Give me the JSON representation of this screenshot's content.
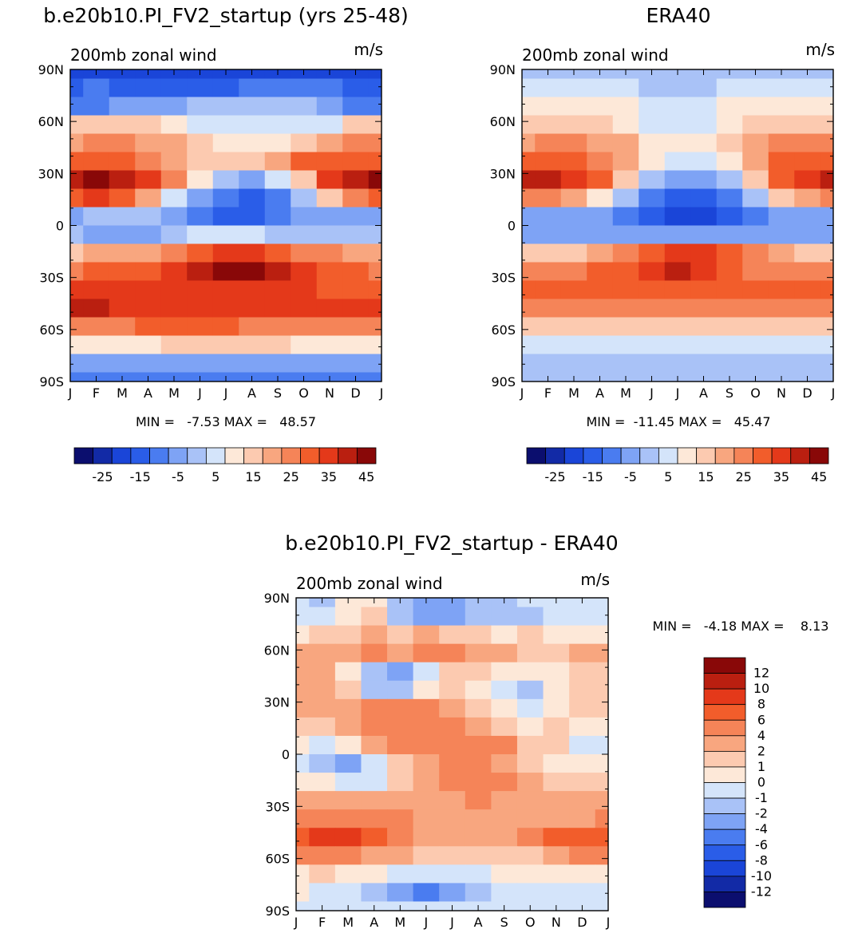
{
  "chart_data": [
    {
      "type": "heatmap",
      "title": "b.e20b10.PI_FV2_startup (yrs 25-48)",
      "subtitle": "200mb zonal wind",
      "units": "m/s",
      "x_ticks": [
        "J",
        "F",
        "M",
        "A",
        "M",
        "J",
        "J",
        "A",
        "S",
        "O",
        "N",
        "D",
        "J"
      ],
      "y_ticks": [
        "90N",
        "60N",
        "30N",
        "0",
        "30S",
        "60S",
        "90S"
      ],
      "stats": "MIN =   -7.53 MAX =   48.57",
      "colorbar": {
        "orientation": "horizontal",
        "levels": [
          -30,
          -25,
          -20,
          -15,
          -10,
          -5,
          0,
          5,
          10,
          15,
          20,
          25,
          30,
          35,
          40,
          45
        ],
        "labels": [
          "-25",
          "-15",
          "-5",
          "5",
          "15",
          "25",
          "35",
          "45"
        ],
        "colors": [
          "#0b0e6e",
          "#122aa6",
          "#1a45d8",
          "#2a5de8",
          "#4a7cf0",
          "#7ea3f5",
          "#a9c2f7",
          "#d4e4fa",
          "#fde8d8",
          "#fccab0",
          "#f8a67f",
          "#f58458",
          "#f25d2b",
          "#e4391a",
          "#ba1f10",
          "#890808"
        ]
      },
      "grid": [
        [
          2,
          2,
          2,
          2,
          2,
          2,
          2,
          2,
          2,
          2,
          2,
          2,
          2
        ],
        [
          3,
          4,
          3,
          3,
          3,
          3,
          3,
          4,
          4,
          4,
          4,
          3,
          3
        ],
        [
          4,
          4,
          5,
          5,
          5,
          6,
          6,
          6,
          6,
          6,
          5,
          4,
          4
        ],
        [
          9,
          9,
          9,
          9,
          8,
          7,
          7,
          7,
          7,
          7,
          7,
          9,
          9
        ],
        [
          10,
          11,
          11,
          10,
          10,
          9,
          8,
          8,
          8,
          9,
          10,
          11,
          11
        ],
        [
          12,
          12,
          12,
          11,
          10,
          9,
          9,
          9,
          10,
          12,
          12,
          12,
          12
        ],
        [
          14,
          15,
          14,
          13,
          11,
          8,
          6,
          5,
          7,
          9,
          13,
          14,
          15
        ],
        [
          12,
          13,
          12,
          10,
          7,
          5,
          4,
          3,
          4,
          6,
          9,
          11,
          12
        ],
        [
          5,
          6,
          6,
          6,
          5,
          4,
          3,
          3,
          4,
          5,
          5,
          5,
          5
        ],
        [
          6,
          5,
          5,
          5,
          6,
          7,
          7,
          7,
          6,
          6,
          6,
          6,
          6
        ],
        [
          9,
          10,
          10,
          10,
          11,
          12,
          13,
          13,
          12,
          11,
          11,
          10,
          10
        ],
        [
          11,
          12,
          12,
          12,
          13,
          14,
          15,
          15,
          14,
          13,
          12,
          12,
          11
        ],
        [
          13,
          13,
          13,
          13,
          13,
          13,
          13,
          13,
          13,
          13,
          12,
          12,
          12
        ],
        [
          14,
          14,
          13,
          13,
          13,
          13,
          13,
          13,
          13,
          13,
          13,
          13,
          13
        ],
        [
          11,
          11,
          11,
          12,
          12,
          12,
          12,
          11,
          11,
          11,
          11,
          11,
          11
        ],
        [
          8,
          8,
          8,
          8,
          9,
          9,
          9,
          9,
          9,
          8,
          8,
          8,
          8
        ],
        [
          5,
          5,
          5,
          5,
          5,
          5,
          5,
          5,
          5,
          5,
          5,
          5,
          5
        ],
        [
          4,
          4,
          4,
          4,
          4,
          4,
          4,
          4,
          4,
          4,
          4,
          4,
          4
        ]
      ]
    },
    {
      "type": "heatmap",
      "title": "ERA40",
      "subtitle": "200mb zonal wind",
      "units": "m/s",
      "x_ticks": [
        "J",
        "F",
        "M",
        "A",
        "M",
        "J",
        "J",
        "A",
        "S",
        "O",
        "N",
        "D",
        "J"
      ],
      "y_ticks": [
        "90N",
        "60N",
        "30N",
        "0",
        "30S",
        "60S",
        "90S"
      ],
      "stats": "MIN =  -11.45 MAX =   45.47",
      "colorbar": {
        "orientation": "horizontal",
        "levels": [
          -30,
          -25,
          -20,
          -15,
          -10,
          -5,
          0,
          5,
          10,
          15,
          20,
          25,
          30,
          35,
          40,
          45
        ],
        "labels": [
          "-25",
          "-15",
          "-5",
          "5",
          "15",
          "25",
          "35",
          "45"
        ],
        "colors": [
          "#0b0e6e",
          "#122aa6",
          "#1a45d8",
          "#2a5de8",
          "#4a7cf0",
          "#7ea3f5",
          "#a9c2f7",
          "#d4e4fa",
          "#fde8d8",
          "#fccab0",
          "#f8a67f",
          "#f58458",
          "#f25d2b",
          "#e4391a",
          "#ba1f10",
          "#890808"
        ]
      },
      "grid": [
        [
          6,
          6,
          6,
          6,
          6,
          6,
          6,
          6,
          6,
          6,
          6,
          6,
          6
        ],
        [
          7,
          7,
          7,
          7,
          7,
          6,
          6,
          6,
          7,
          7,
          7,
          7,
          7
        ],
        [
          8,
          8,
          8,
          8,
          8,
          7,
          7,
          7,
          8,
          8,
          8,
          8,
          8
        ],
        [
          9,
          9,
          9,
          9,
          8,
          7,
          7,
          7,
          8,
          9,
          9,
          9,
          9
        ],
        [
          10,
          11,
          11,
          10,
          10,
          8,
          8,
          8,
          9,
          10,
          11,
          11,
          11
        ],
        [
          12,
          12,
          12,
          11,
          10,
          8,
          7,
          7,
          8,
          10,
          12,
          12,
          12
        ],
        [
          14,
          14,
          13,
          12,
          9,
          6,
          5,
          5,
          6,
          9,
          12,
          13,
          14
        ],
        [
          11,
          11,
          10,
          8,
          6,
          4,
          3,
          3,
          4,
          6,
          9,
          10,
          11
        ],
        [
          5,
          5,
          5,
          5,
          4,
          3,
          2,
          2,
          3,
          4,
          5,
          5,
          5
        ],
        [
          5,
          5,
          5,
          5,
          5,
          5,
          5,
          5,
          5,
          5,
          5,
          5,
          5
        ],
        [
          9,
          9,
          9,
          10,
          11,
          12,
          13,
          13,
          12,
          11,
          10,
          9,
          9
        ],
        [
          11,
          11,
          11,
          12,
          12,
          13,
          14,
          13,
          12,
          11,
          11,
          11,
          11
        ],
        [
          12,
          12,
          12,
          12,
          12,
          12,
          12,
          12,
          12,
          12,
          12,
          12,
          12
        ],
        [
          11,
          11,
          11,
          11,
          11,
          11,
          11,
          11,
          11,
          11,
          11,
          11,
          11
        ],
        [
          9,
          9,
          9,
          9,
          9,
          9,
          9,
          9,
          9,
          9,
          9,
          9,
          9
        ],
        [
          7,
          7,
          7,
          7,
          7,
          7,
          7,
          7,
          7,
          7,
          7,
          7,
          7
        ],
        [
          6,
          6,
          6,
          6,
          6,
          6,
          6,
          6,
          6,
          6,
          6,
          6,
          6
        ],
        [
          6,
          6,
          6,
          6,
          6,
          6,
          6,
          6,
          6,
          6,
          6,
          6,
          6
        ]
      ]
    },
    {
      "type": "heatmap",
      "title": "b.e20b10.PI_FV2_startup - ERA40",
      "subtitle": "200mb zonal wind",
      "units": "m/s",
      "x_ticks": [
        "J",
        "F",
        "M",
        "A",
        "M",
        "J",
        "J",
        "A",
        "S",
        "O",
        "N",
        "D",
        "J"
      ],
      "y_ticks": [
        "90N",
        "60N",
        "30N",
        "0",
        "30S",
        "60S",
        "90S"
      ],
      "stats": "MIN =   -4.18 MAX =    8.13",
      "colorbar": {
        "orientation": "vertical",
        "levels": [
          -14,
          -12,
          -10,
          -8,
          -6,
          -4,
          -2,
          -1,
          0,
          1,
          2,
          4,
          6,
          8,
          10,
          12
        ],
        "labels": [
          "12",
          "10",
          "8",
          "6",
          "4",
          "2",
          "1",
          "0",
          "-1",
          "-2",
          "-4",
          "-6",
          "-8",
          "-10",
          "-12"
        ],
        "colors": [
          "#0b0e6e",
          "#122aa6",
          "#1a45d8",
          "#2a5de8",
          "#4a7cf0",
          "#7ea3f5",
          "#a9c2f7",
          "#d4e4fa",
          "#fde8d8",
          "#fccab0",
          "#f8a67f",
          "#f58458",
          "#f25d2b",
          "#e4391a",
          "#ba1f10",
          "#890808"
        ]
      },
      "grid": [
        [
          7,
          6,
          8,
          8,
          6,
          5,
          5,
          6,
          6,
          7,
          7,
          7,
          7
        ],
        [
          7,
          7,
          8,
          9,
          6,
          5,
          5,
          6,
          6,
          6,
          7,
          7,
          7
        ],
        [
          8,
          9,
          9,
          10,
          9,
          10,
          9,
          9,
          8,
          9,
          8,
          8,
          8
        ],
        [
          10,
          10,
          10,
          11,
          10,
          11,
          11,
          10,
          10,
          9,
          9,
          10,
          10
        ],
        [
          10,
          10,
          8,
          6,
          5,
          7,
          9,
          9,
          8,
          8,
          8,
          9,
          9
        ],
        [
          10,
          10,
          9,
          6,
          6,
          8,
          9,
          8,
          7,
          6,
          8,
          9,
          9
        ],
        [
          10,
          10,
          10,
          11,
          11,
          11,
          10,
          9,
          8,
          7,
          8,
          9,
          9
        ],
        [
          9,
          9,
          10,
          11,
          11,
          11,
          11,
          10,
          9,
          8,
          9,
          8,
          8
        ],
        [
          8,
          7,
          8,
          10,
          11,
          11,
          11,
          11,
          11,
          9,
          9,
          7,
          7
        ],
        [
          7,
          6,
          5,
          7,
          9,
          10,
          11,
          11,
          10,
          9,
          8,
          8,
          8
        ],
        [
          8,
          8,
          7,
          7,
          9,
          10,
          11,
          11,
          11,
          10,
          9,
          9,
          9
        ],
        [
          10,
          10,
          10,
          10,
          10,
          10,
          10,
          11,
          10,
          10,
          10,
          10,
          10
        ],
        [
          11,
          11,
          11,
          11,
          11,
          10,
          10,
          10,
          10,
          10,
          10,
          10,
          11
        ],
        [
          12,
          13,
          13,
          12,
          11,
          10,
          10,
          10,
          10,
          11,
          12,
          12,
          12
        ],
        [
          11,
          11,
          11,
          10,
          10,
          9,
          9,
          9,
          9,
          9,
          10,
          11,
          11
        ],
        [
          8,
          9,
          8,
          8,
          7,
          7,
          7,
          7,
          8,
          8,
          8,
          8,
          8
        ],
        [
          8,
          7,
          7,
          6,
          5,
          4,
          5,
          6,
          7,
          7,
          7,
          7,
          7
        ],
        [
          7,
          7,
          7,
          7,
          7,
          7,
          7,
          7,
          7,
          7,
          7,
          7,
          7
        ]
      ]
    }
  ]
}
